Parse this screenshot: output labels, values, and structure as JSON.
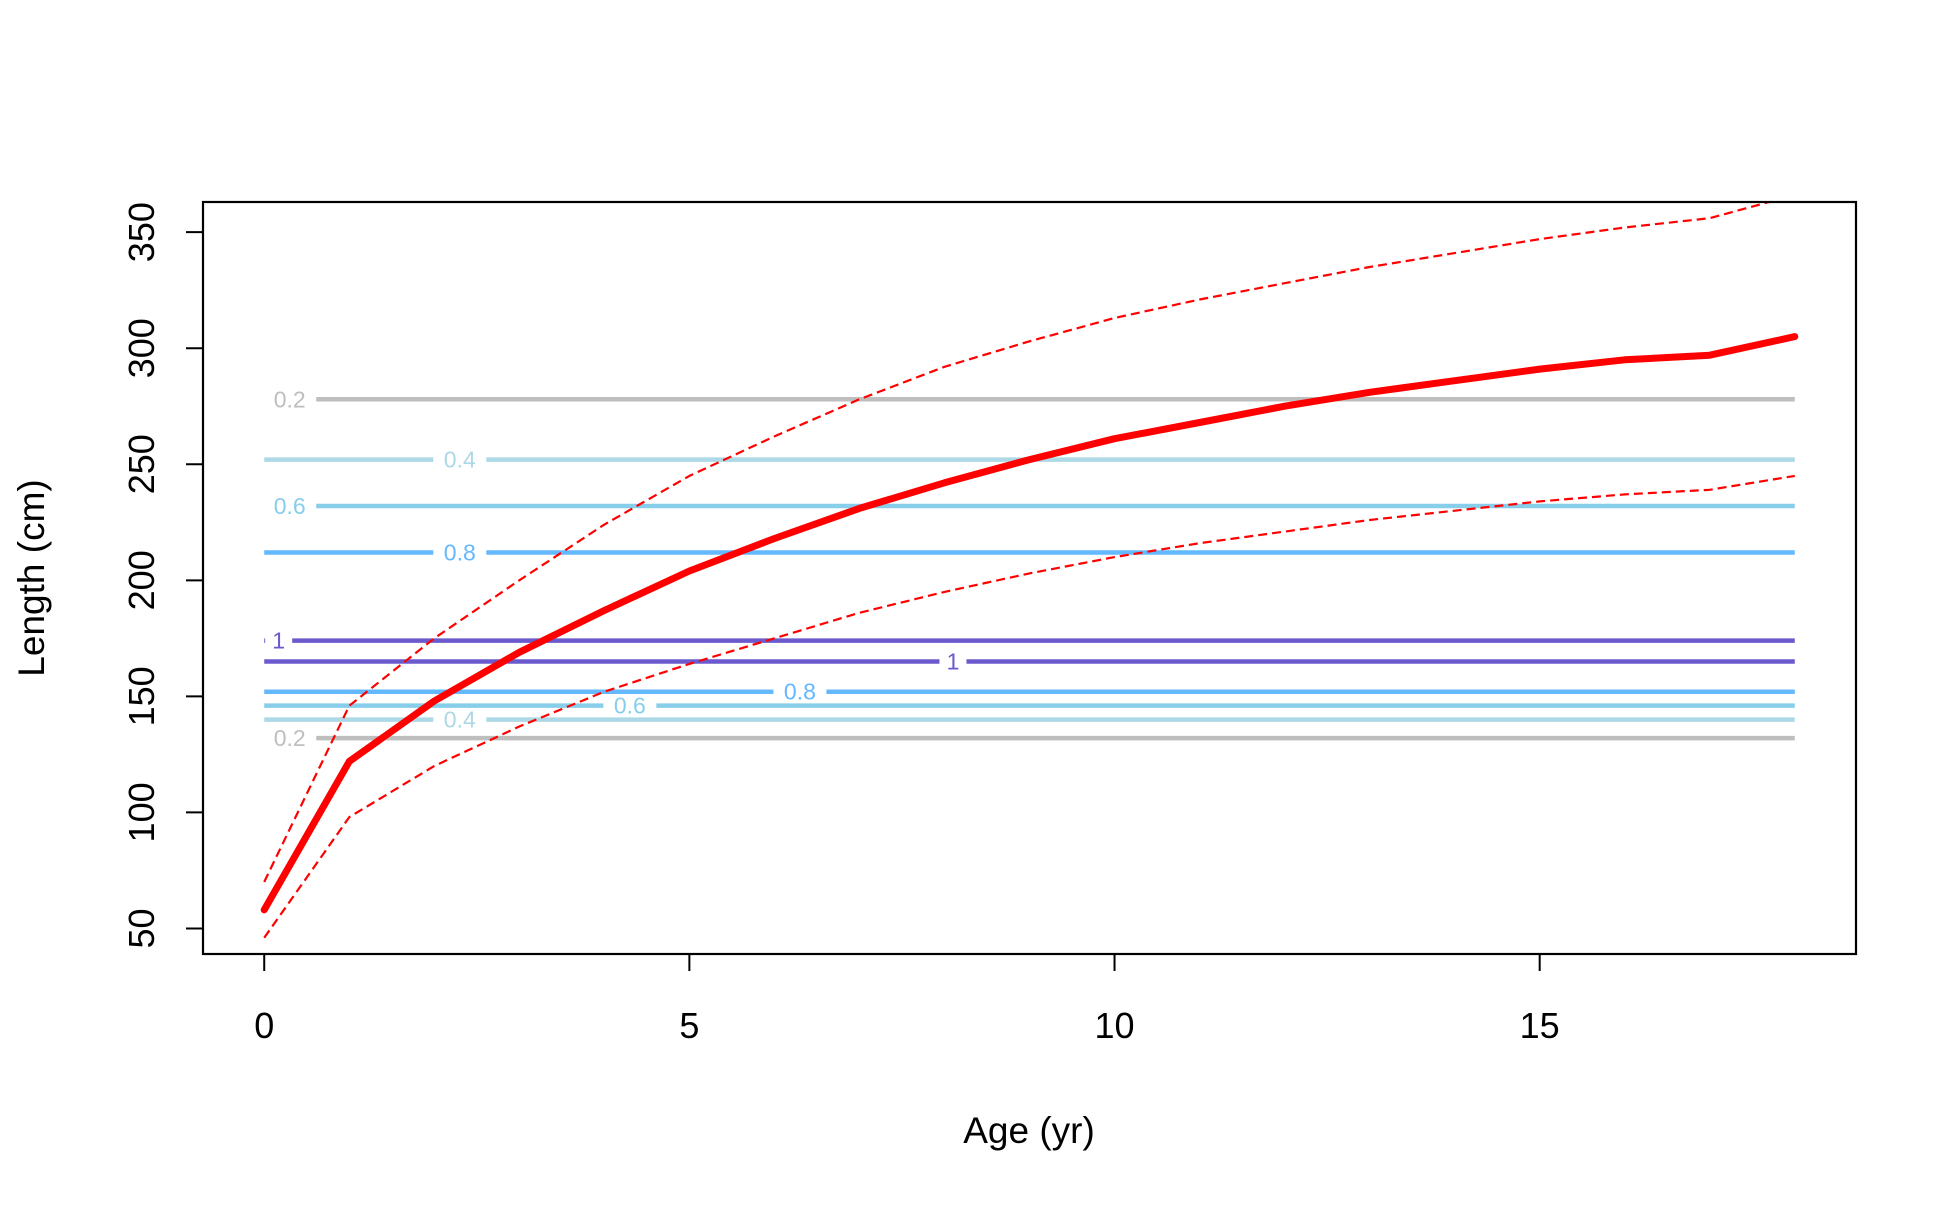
{
  "chart_data": {
    "type": "line",
    "title": "",
    "xlabel": "Age (yr)",
    "ylabel": "Length (cm)",
    "xlim": [
      -0.72,
      18.72
    ],
    "ylim": [
      39,
      363
    ],
    "xticks": [
      0,
      5,
      10,
      15
    ],
    "yticks": [
      50,
      100,
      150,
      200,
      250,
      300,
      350
    ],
    "grid": false,
    "legend": "none",
    "series": [
      {
        "style": "solid",
        "color": "#FF0000",
        "x": [
          0,
          1,
          2,
          3,
          4,
          5,
          6,
          7,
          8,
          9,
          10,
          11,
          12,
          13,
          14,
          15,
          16,
          17,
          18
        ],
        "y": [
          58,
          122,
          148,
          169,
          187,
          204,
          218,
          231,
          242,
          252,
          261,
          268,
          275,
          281,
          286,
          291,
          295,
          297,
          305
        ]
      },
      {
        "style": "dashed",
        "color": "#FF0000",
        "x": [
          0,
          1,
          2,
          3,
          4,
          5,
          6,
          7,
          8,
          9,
          10,
          11,
          12,
          13,
          14,
          15,
          16,
          17,
          18
        ],
        "y": [
          70,
          146,
          175,
          200,
          224,
          245,
          262,
          278,
          292,
          303,
          313,
          321,
          328,
          335,
          341,
          347,
          352,
          356,
          366
        ]
      },
      {
        "style": "dashed",
        "color": "#FF0000",
        "x": [
          0,
          1,
          2,
          3,
          4,
          5,
          6,
          7,
          8,
          9,
          10,
          11,
          12,
          13,
          14,
          15,
          16,
          17,
          18
        ],
        "y": [
          46,
          98,
          120,
          137,
          152,
          164,
          175,
          186,
          195,
          203,
          210,
          216,
          221,
          226,
          230,
          234,
          237,
          239,
          245
        ]
      }
    ],
    "contours": [
      {
        "y": 278,
        "label": "0.2",
        "color": "#BEBEBE",
        "label_x": 0.3
      },
      {
        "y": 252,
        "label": "0.4",
        "color": "#ADD8E6",
        "label_x": 2.3
      },
      {
        "y": 232,
        "label": "0.6",
        "color": "#87CEEB",
        "label_x": 0.3
      },
      {
        "y": 212,
        "label": "0.8",
        "color": "#63B8FF",
        "label_x": 2.3
      },
      {
        "y": 174,
        "label": "1",
        "color": "#6A5ACD",
        "label_x": 0.17
      },
      {
        "y": 165,
        "label": "1",
        "color": "#6A5ACD",
        "label_x": 8.1
      },
      {
        "y": 152,
        "label": "0.8",
        "color": "#63B8FF",
        "label_x": 6.3
      },
      {
        "y": 146,
        "label": "0.6",
        "color": "#87CEEB",
        "label_x": 4.3
      },
      {
        "y": 140,
        "label": "0.4",
        "color": "#ADD8E6",
        "label_x": 2.3
      },
      {
        "y": 132,
        "label": "0.2",
        "color": "#BEBEBE",
        "label_x": 0.3
      }
    ]
  }
}
